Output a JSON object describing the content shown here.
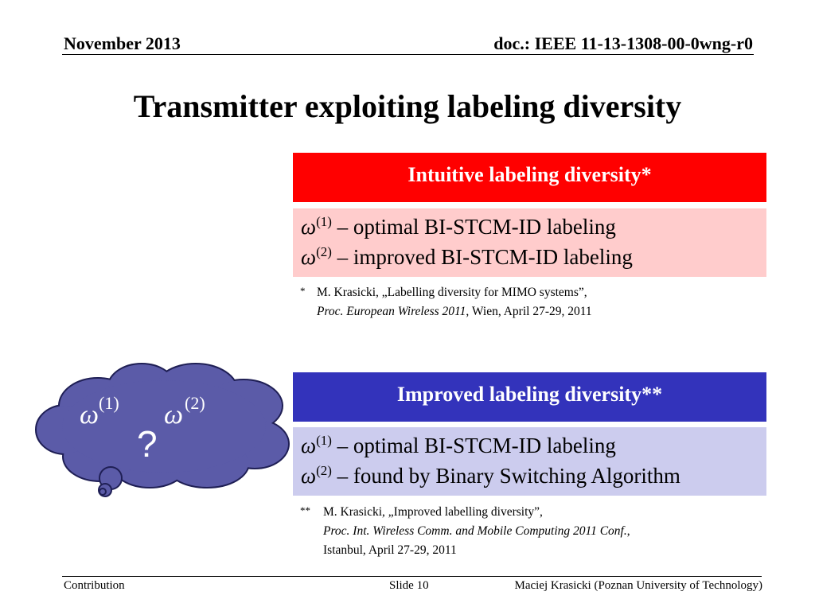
{
  "header": {
    "date": "November 2013",
    "doc": "doc.: IEEE 11-13-1308-00-0wng-r0"
  },
  "slide": {
    "title": "Transmitter exploiting labeling diversity"
  },
  "box1": {
    "heading": "Intuitive labeling diversity*",
    "lines": [
      {
        "symbol": "ω",
        "sup": "(1)",
        "text": " – optimal BI-STCM-ID labeling"
      },
      {
        "symbol": "ω",
        "sup": "(2)",
        "text": " – improved BI-STCM-ID labeling"
      }
    ],
    "footnote": {
      "mark": "*",
      "line1": "M. Krasicki, „Labelling diversity for MIMO systems”,",
      "line2_italic": "Proc. European Wireless 2011",
      "line2_rest": ", Wien, April 27-29, 2011"
    }
  },
  "box2": {
    "heading": "Improved labeling diversity**",
    "lines": [
      {
        "symbol": "ω",
        "sup": "(1)",
        "text": " – optimal BI-STCM-ID labeling"
      },
      {
        "symbol": "ω",
        "sup": "(2)",
        "text": " – found by Binary Switching Algorithm"
      }
    ],
    "footnote": {
      "mark": "**",
      "line1": "M. Krasicki, „Improved labelling diversity”,",
      "line2_italic": "Proc. Int. Wireless Comm. and Mobile Computing 2011 Conf.",
      "line2_rest": ",",
      "line3": "Istanbul, April 27-29, 2011"
    }
  },
  "cloud": {
    "symbol_a": "ω",
    "sup_a": "(1)",
    "symbol_b": "ω",
    "sup_b": "(2)",
    "question": "?",
    "fill": "#5b5ba8",
    "stroke": "#1f1f55"
  },
  "footer": {
    "left": "Contribution",
    "center": "Slide 10",
    "right": "Maciej Krasicki (Poznan University of Technology)"
  }
}
